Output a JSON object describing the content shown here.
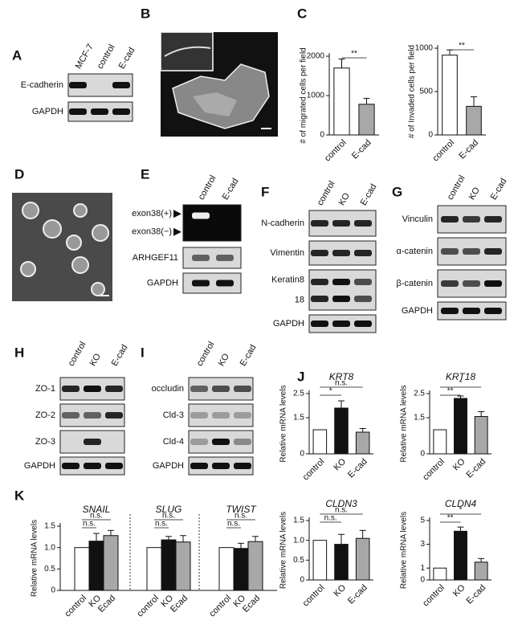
{
  "panel_labels": [
    "A",
    "B",
    "C",
    "D",
    "E",
    "F",
    "G",
    "H",
    "I",
    "J",
    "K"
  ],
  "blot_A": {
    "lanes": [
      "MCF-7",
      "control",
      "E-cad"
    ],
    "rows": [
      "E-cadherin",
      "GAPDH"
    ]
  },
  "blot_E": {
    "lanes": [
      "control",
      "E-cad"
    ],
    "rows": [
      "exon38(+)",
      "exon38(−)",
      "ARHGEF11",
      "GAPDH"
    ]
  },
  "blot_F": {
    "lanes": [
      "control",
      "KO",
      "E-cad"
    ],
    "rows": [
      "N-cadherin",
      "Vimentin",
      "Keratin8",
      "18",
      "GAPDH"
    ]
  },
  "blot_G": {
    "lanes": [
      "control",
      "KO",
      "E-cad"
    ],
    "rows": [
      "Vinculin",
      "α-catenin",
      "β-catenin",
      "GAPDH"
    ]
  },
  "blot_H": {
    "lanes": [
      "control",
      "KO",
      "E-cad"
    ],
    "rows": [
      "ZO-1",
      "ZO-2",
      "ZO-3",
      "GAPDH"
    ]
  },
  "blot_I": {
    "lanes": [
      "control",
      "KO",
      "E-cad"
    ],
    "rows": [
      "occludin",
      "Cld-3",
      "Cld-4",
      "GAPDH"
    ]
  },
  "chart_data": [
    {
      "type": "bar",
      "ylabel": "# of migrated cells per field",
      "categories": [
        "control",
        "E-cad"
      ],
      "values": [
        1700,
        780
      ],
      "errors": [
        230,
        150
      ],
      "colors": [
        "#ffffff",
        "#a8a8a8"
      ],
      "ylim": [
        0,
        2000
      ],
      "yticks": [
        0,
        1000,
        2000
      ],
      "significance": [
        "**"
      ]
    },
    {
      "type": "bar",
      "ylabel": "# of Invaded cells per field",
      "categories": [
        "control",
        "E-cad"
      ],
      "values": [
        920,
        330
      ],
      "errors": [
        60,
        110
      ],
      "colors": [
        "#ffffff",
        "#a8a8a8"
      ],
      "ylim": [
        0,
        1000
      ],
      "yticks": [
        0,
        500,
        1000
      ],
      "significance": [
        "**"
      ]
    },
    {
      "type": "bar",
      "title": "KRT8",
      "ylabel": "Relative mRNA levels",
      "categories": [
        "control",
        "KO",
        "E-cad"
      ],
      "values": [
        1.0,
        1.9,
        0.9
      ],
      "errors": [
        0,
        0.3,
        0.15
      ],
      "colors": [
        "#ffffff",
        "#111111",
        "#a8a8a8"
      ],
      "ylim": [
        0,
        2.5
      ],
      "yticks": [
        0,
        1.5,
        2.5
      ],
      "significance": [
        "*",
        "n.s."
      ]
    },
    {
      "type": "bar",
      "title": "KRT18",
      "ylabel": "Relative mRNA levels",
      "categories": [
        "control",
        "KO",
        "E-cad"
      ],
      "values": [
        1.0,
        2.3,
        1.55
      ],
      "errors": [
        0,
        0.1,
        0.2
      ],
      "colors": [
        "#ffffff",
        "#111111",
        "#a8a8a8"
      ],
      "ylim": [
        0,
        2.5
      ],
      "yticks": [
        0,
        1.5,
        2.5
      ],
      "significance": [
        "**",
        "*"
      ]
    },
    {
      "type": "bar",
      "title": "CLDN3",
      "ylabel": "Relative mRNA levels",
      "categories": [
        "control",
        "KO",
        "E-cad"
      ],
      "values": [
        1.0,
        0.9,
        1.05
      ],
      "errors": [
        0,
        0.25,
        0.2
      ],
      "colors": [
        "#ffffff",
        "#111111",
        "#a8a8a8"
      ],
      "ylim": [
        0,
        1.5
      ],
      "yticks": [
        0,
        0.5,
        {
          "value": 1,
          "label": "1.0"
        },
        1.5
      ],
      "significance": [
        "n.s.",
        "n.s."
      ]
    },
    {
      "type": "bar",
      "title": "CLDN4",
      "ylabel": "Relative mRNA levels",
      "categories": [
        "control",
        "KO",
        "E-cad"
      ],
      "values": [
        1.0,
        4.1,
        1.5
      ],
      "errors": [
        0,
        0.35,
        0.3
      ],
      "colors": [
        "#ffffff",
        "#111111",
        "#a8a8a8"
      ],
      "ylim": [
        0,
        5
      ],
      "yticks": [
        0,
        1,
        3,
        5
      ],
      "significance": [
        "**",
        "*"
      ]
    },
    {
      "type": "grouped_bar",
      "ylabel": "Relative mRNA levels",
      "categories": [
        "SNAIL",
        "SLUG",
        "TWIST"
      ],
      "series": [
        {
          "name": "control",
          "color": "#ffffff",
          "values": [
            1.0,
            1.0,
            1.0
          ],
          "errors": [
            0,
            0,
            0
          ]
        },
        {
          "name": "KO",
          "color": "#111111",
          "values": [
            1.15,
            1.18,
            0.98
          ],
          "errors": [
            0.18,
            0.08,
            0.12
          ]
        },
        {
          "name": "Ecad",
          "color": "#a8a8a8",
          "values": [
            1.28,
            1.13,
            1.14
          ],
          "errors": [
            0.12,
            0.15,
            0.12
          ]
        }
      ],
      "ylim": [
        0,
        1.5
      ],
      "yticks": [
        0,
        0.5,
        {
          "value": 1,
          "label": "1.0"
        },
        1.5
      ],
      "significance": [
        "n.s.",
        "n.s."
      ]
    }
  ]
}
